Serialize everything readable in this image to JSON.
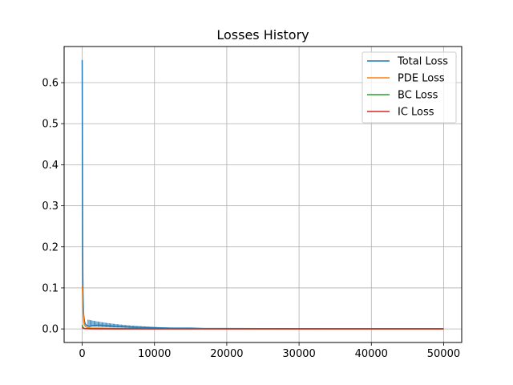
{
  "chart_data": {
    "type": "line",
    "title": "Losses History",
    "xlabel": "",
    "ylabel": "",
    "xlim": [
      -2500,
      52500
    ],
    "ylim": [
      -0.033,
      0.688
    ],
    "xticks": [
      0,
      10000,
      20000,
      30000,
      40000,
      50000
    ],
    "xtick_labels": [
      "0",
      "10000",
      "20000",
      "30000",
      "40000",
      "50000"
    ],
    "yticks": [
      0.0,
      0.1,
      0.2,
      0.3,
      0.4,
      0.5,
      0.6
    ],
    "ytick_labels": [
      "0.0",
      "0.1",
      "0.2",
      "0.3",
      "0.4",
      "0.5",
      "0.6"
    ],
    "grid": true,
    "legend_position": "top-right",
    "series": [
      {
        "name": "Total Loss",
        "color": "#1f77b4",
        "x": [
          0,
          30,
          60,
          100,
          150,
          200,
          300,
          400,
          600,
          800,
          1000,
          1500,
          2000,
          2500,
          3000,
          4000,
          5000,
          6000,
          7000,
          8000,
          10000,
          12000,
          15000,
          17000,
          20000,
          30000,
          40000,
          50000
        ],
        "y": [
          0.655,
          0.4,
          0.2,
          0.1,
          0.06,
          0.035,
          0.02,
          0.013,
          0.009,
          0.007,
          0.006,
          0.008,
          0.009,
          0.009,
          0.008,
          0.007,
          0.006,
          0.005,
          0.004,
          0.004,
          0.003,
          0.002,
          0.002,
          0.001,
          0.001,
          0.0005,
          0.0003,
          0.0002
        ]
      },
      {
        "name": "PDE Loss",
        "color": "#ff7f0e",
        "x": [
          0,
          50,
          100,
          200,
          300,
          500,
          800,
          1200,
          2000,
          5000,
          10000,
          20000,
          30000,
          40000,
          50000
        ],
        "y": [
          0.103,
          0.09,
          0.05,
          0.02,
          0.01,
          0.005,
          0.003,
          0.002,
          0.002,
          0.001,
          0.0008,
          0.0005,
          0.0003,
          0.0002,
          0.0001
        ]
      },
      {
        "name": "BC Loss",
        "color": "#2ca02c",
        "x": [
          0,
          100,
          300,
          1000,
          5000,
          50000
        ],
        "y": [
          0.01,
          0.004,
          0.001,
          0.0005,
          0.0002,
          0.0001
        ]
      },
      {
        "name": "IC Loss",
        "color": "#d62728",
        "x": [
          0,
          100,
          300,
          1000,
          5000,
          50000
        ],
        "y": [
          0.004,
          0.002,
          0.0008,
          0.0004,
          0.0002,
          0.0001
        ]
      }
    ]
  }
}
